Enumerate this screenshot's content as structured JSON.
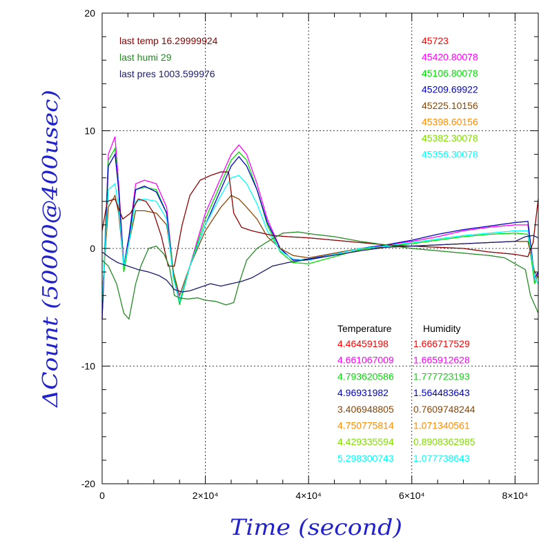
{
  "chart_data": {
    "type": "line",
    "xlabel": "Time (second)",
    "ylabel": "ΔCount (50000@400usec)",
    "xlim": [
      0,
      84500
    ],
    "ylim": [
      -20,
      20
    ],
    "x_ticks": [
      {
        "value": 0,
        "label": "0"
      },
      {
        "value": 20000,
        "label": "2×10⁴"
      },
      {
        "value": 40000,
        "label": "4×10⁴"
      },
      {
        "value": 60000,
        "label": "6×10⁴"
      },
      {
        "value": 80000,
        "label": "8×10⁴"
      }
    ],
    "y_ticks": [
      {
        "value": 20,
        "label": "20"
      },
      {
        "value": 10,
        "label": "10"
      },
      {
        "value": 0,
        "label": "0"
      },
      {
        "value": -10,
        "label": "-10"
      },
      {
        "value": -20,
        "label": "-20"
      }
    ],
    "grid": true,
    "last_values": [
      {
        "text": "last temp 16.29999924",
        "color": "#8b0000"
      },
      {
        "text": "last humi 29",
        "color": "#228b22"
      },
      {
        "text": "last pres 1003.599976",
        "color": "#191970"
      }
    ],
    "counts": [
      {
        "text": "45723",
        "color": "#ff0000"
      },
      {
        "text": "45420.80078",
        "color": "#ff00ff"
      },
      {
        "text": "45106.80078",
        "color": "#00dd00"
      },
      {
        "text": "45209.69922",
        "color": "#0000cc"
      },
      {
        "text": "45225.10156",
        "color": "#8b4500"
      },
      {
        "text": "45398.60156",
        "color": "#ff8c00"
      },
      {
        "text": "45382.30078",
        "color": "#7fdd00"
      },
      {
        "text": "45356.30078",
        "color": "#00ffff"
      }
    ],
    "coeff_header": {
      "temperature": "Temperature",
      "humidity": "Humidity"
    },
    "coefficients": [
      {
        "temperature": "4.46459198",
        "humidity": "1.666717529",
        "color": "#ff0000"
      },
      {
        "temperature": "4.661067009",
        "humidity": "1.665912628",
        "color": "#ff00ff"
      },
      {
        "temperature": "4.793620586",
        "humidity": "1.777723193",
        "color": "#00dd00"
      },
      {
        "temperature": "4.96931982",
        "humidity": "1.564483643",
        "color": "#0000cc"
      },
      {
        "temperature": "3.406948805",
        "humidity": "0.7609748244",
        "color": "#8b4500"
      },
      {
        "temperature": "4.750775814",
        "humidity": "1.071340561",
        "color": "#ff8c00"
      },
      {
        "temperature": "4.429335594",
        "humidity": "0.8908362985",
        "color": "#7fdd00"
      },
      {
        "temperature": "5.298300743",
        "humidity": "1.077738643",
        "color": "#00ffff"
      }
    ],
    "series": [
      {
        "color": "#ff00ff",
        "x": [
          0,
          1200,
          2500,
          3200,
          4200,
          5200,
          6500,
          8200,
          10500,
          12500,
          13800,
          15000,
          17000,
          20000,
          23000,
          25000,
          26500,
          28000,
          30000,
          32000,
          34500,
          37000,
          40000,
          45000,
          50000,
          55000,
          60000,
          65000,
          70000,
          75000,
          80000,
          82500,
          83800,
          84500
        ],
        "y": [
          -6,
          8,
          9.5,
          5.5,
          -1.5,
          1,
          5.5,
          5.8,
          5.5,
          3.5,
          -2,
          -4.5,
          -1.5,
          3,
          6,
          8,
          8.8,
          8,
          5.5,
          2.5,
          0,
          -1,
          -1,
          -0.5,
          0,
          0.3,
          0.6,
          1,
          1.5,
          1.8,
          2,
          2,
          -3,
          -2
        ]
      },
      {
        "color": "#00dd00",
        "x": [
          0,
          1200,
          2500,
          3200,
          4200,
          5200,
          6500,
          8200,
          10500,
          12500,
          13800,
          15000,
          17000,
          20000,
          23000,
          25000,
          26500,
          28000,
          30000,
          32000,
          34500,
          37000,
          40000,
          45000,
          50000,
          55000,
          60000,
          65000,
          70000,
          75000,
          80000,
          82500,
          83800,
          84500
        ],
        "y": [
          -5.5,
          7.5,
          8.5,
          5,
          -2,
          0.5,
          5,
          5.2,
          5,
          3,
          -2,
          -4.8,
          -1.5,
          2.5,
          5.5,
          7.5,
          8.2,
          7.5,
          5,
          2,
          -0.3,
          -1.2,
          -1.3,
          -0.7,
          -0.1,
          0.2,
          0.4,
          0.7,
          1,
          1.2,
          1.3,
          1.2,
          -3,
          -2.2
        ]
      },
      {
        "color": "#0000cc",
        "x": [
          0,
          1200,
          2500,
          3200,
          4200,
          5200,
          6500,
          8200,
          10500,
          12500,
          13800,
          15000,
          17000,
          20000,
          23000,
          25000,
          26500,
          28000,
          30000,
          32000,
          34500,
          37000,
          40000,
          45000,
          50000,
          55000,
          60000,
          65000,
          70000,
          75000,
          80000,
          82500,
          83800,
          84500
        ],
        "y": [
          -6,
          7,
          8,
          5,
          -1.5,
          1,
          5,
          5.3,
          4.8,
          3,
          -2.5,
          -4.5,
          -1.5,
          2,
          5,
          7,
          7.8,
          7,
          5,
          2.2,
          0,
          -1,
          -0.9,
          -0.5,
          0,
          0.3,
          0.7,
          1.2,
          1.6,
          1.9,
          2.2,
          2.3,
          -2.5,
          -2
        ]
      },
      {
        "color": "#8b4500",
        "x": [
          0,
          1200,
          2500,
          3200,
          4200,
          5200,
          6500,
          8200,
          10500,
          12500,
          13800,
          15000,
          17000,
          20000,
          23000,
          25000,
          26500,
          28000,
          30000,
          32000,
          34500,
          37000,
          40000,
          45000,
          50000,
          55000,
          60000,
          65000,
          70000,
          75000,
          80000,
          82500,
          83800,
          84500
        ],
        "y": [
          -4,
          3.5,
          4.5,
          3,
          -1.5,
          0.5,
          3.2,
          3.2,
          3,
          2,
          -2,
          -4,
          -1.5,
          1.5,
          3.5,
          4.5,
          4.2,
          3.5,
          2.5,
          1,
          0,
          -0.6,
          -0.8,
          -0.4,
          0,
          0.1,
          0.2,
          0.3,
          0.4,
          0.5,
          0.6,
          0.6,
          -2,
          -2.5
        ]
      },
      {
        "color": "#00ffff",
        "x": [
          0,
          1200,
          2500,
          3200,
          4200,
          5200,
          6500,
          8200,
          10500,
          12500,
          13800,
          15000,
          17000,
          20000,
          23000,
          25000,
          26500,
          28000,
          30000,
          32000,
          34500,
          37000,
          40000,
          45000,
          50000,
          55000,
          60000,
          65000,
          70000,
          75000,
          80000,
          82500,
          83800,
          84500
        ],
        "y": [
          -4.5,
          5,
          5.5,
          3.5,
          -1.5,
          0.5,
          4,
          4.2,
          4,
          2.5,
          -2.5,
          -4.5,
          -1.5,
          2,
          4.5,
          6,
          6.2,
          5.5,
          3.8,
          1.5,
          -0.2,
          -0.9,
          -1,
          -0.5,
          0,
          0.2,
          0.5,
          0.8,
          1.1,
          1.3,
          1.5,
          1.5,
          -2.5,
          -3
        ]
      },
      {
        "color": "#8b0000",
        "x": [
          0,
          1000,
          2500,
          4000,
          5500,
          7000,
          8500,
          10000,
          11500,
          12800,
          14000,
          15500,
          17000,
          19000,
          21000,
          23000,
          24500,
          25500,
          27000,
          29000,
          31000,
          33000,
          36000,
          40000,
          45000,
          50000,
          55000,
          60000,
          65000,
          70000,
          75000,
          80000,
          82500,
          83500,
          84500
        ],
        "y": [
          1.5,
          4,
          4.2,
          2.5,
          3,
          4.2,
          4,
          3,
          1,
          -1.5,
          -1.5,
          2,
          4.5,
          5.8,
          6.2,
          6.5,
          6.5,
          3,
          1.8,
          1.5,
          1.3,
          1.1,
          1,
          0.9,
          0.7,
          0.5,
          0.3,
          0.2,
          0.1,
          0,
          -0.3,
          -0.5,
          -0.7,
          0.5,
          4.2
        ]
      },
      {
        "color": "#228b22",
        "x": [
          0,
          1200,
          2800,
          4200,
          5200,
          6500,
          7500,
          9000,
          10500,
          12000,
          13000,
          14000,
          15000,
          16500,
          18500,
          20000,
          22000,
          24000,
          25500,
          26500,
          28000,
          30000,
          32500,
          35000,
          38000,
          41000,
          45000,
          50000,
          55000,
          60000,
          65000,
          70000,
          75000,
          78000,
          80000,
          82000,
          83000,
          84500
        ],
        "y": [
          -1,
          -1.5,
          -3,
          -5.5,
          -6,
          -3,
          -1.5,
          0,
          0.2,
          -0.5,
          -1.5,
          -4,
          -4.2,
          -4.3,
          -4.2,
          -4.4,
          -4.5,
          -4.8,
          -4.6,
          -3,
          -1,
          0,
          0.7,
          1.3,
          1.4,
          1.2,
          1,
          0.6,
          0.3,
          0,
          -0.2,
          -0.4,
          -0.6,
          -0.8,
          -1.3,
          -1.8,
          -4,
          -5.5
        ]
      },
      {
        "color": "#191970",
        "x": [
          0,
          1500,
          3000,
          5000,
          7000,
          9000,
          11000,
          12500,
          14000,
          15500,
          17000,
          19000,
          21000,
          23000,
          25000,
          27000,
          29000,
          31000,
          33000,
          36000,
          39000,
          42000,
          46000,
          50000,
          55000,
          60000,
          65000,
          70000,
          75000,
          80000,
          82000,
          83500,
          84500
        ],
        "y": [
          -0.3,
          -0.8,
          -1.2,
          -1.5,
          -1.8,
          -2,
          -2.3,
          -2.7,
          -3.5,
          -3.7,
          -3.6,
          -3.3,
          -3,
          -3.2,
          -3,
          -2.8,
          -2.5,
          -2,
          -1.5,
          -1.2,
          -1,
          -0.8,
          -0.5,
          -0.2,
          0.1,
          0.2,
          0.3,
          0.4,
          0.5,
          0.6,
          1,
          1.1,
          0.9
        ]
      }
    ]
  }
}
